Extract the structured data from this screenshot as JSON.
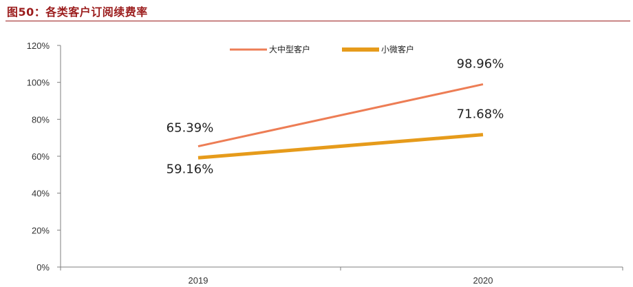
{
  "figure_title": "图50：各类客户订阅续费率",
  "chart_data": {
    "type": "line",
    "categories": [
      "2019",
      "2020"
    ],
    "series": [
      {
        "name": "大中型客户",
        "values": [
          65.39,
          98.96
        ],
        "labels": [
          "65.39%",
          "98.96%"
        ],
        "color": "#ed7d55"
      },
      {
        "name": "小微客户",
        "values": [
          59.16,
          71.68
        ],
        "labels": [
          "59.16%",
          "71.68%"
        ],
        "color": "#e69b1b"
      }
    ],
    "yticks": [
      "0%",
      "20%",
      "40%",
      "60%",
      "80%",
      "100%",
      "120%"
    ],
    "ylim": [
      0,
      120
    ],
    "grid": false,
    "legend": "top-center"
  }
}
